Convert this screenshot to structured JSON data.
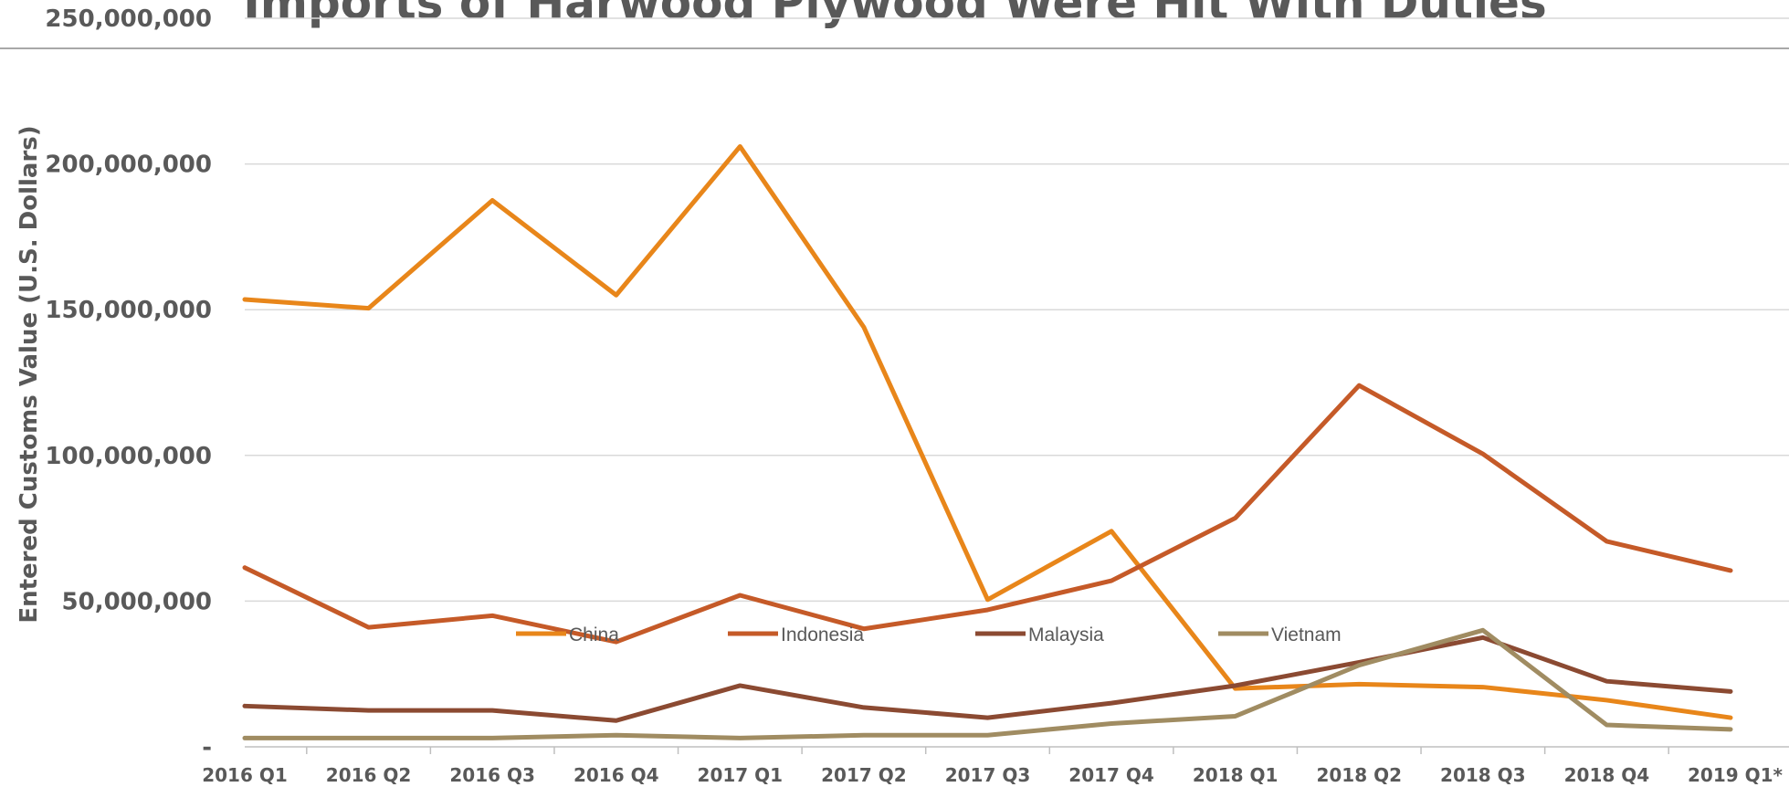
{
  "chart_data": {
    "type": "line",
    "title": "Imports of Harwood Plywood Were Hit With Duties",
    "xlabel": "",
    "ylabel": "Entered Customs Value (U.S. Dollars)",
    "ylim": [
      0,
      250000000
    ],
    "yticks": [
      0,
      50000000,
      100000000,
      150000000,
      200000000,
      250000000
    ],
    "ytick_labels": [
      "-",
      "50,000,000",
      "100,000,000",
      "150,000,000",
      "200,000,000",
      "250,000,000"
    ],
    "categories": [
      "2016 Q1",
      "2016 Q2",
      "2016 Q3",
      "2016 Q4",
      "2017 Q1",
      "2017 Q2",
      "2017 Q3",
      "2017 Q4",
      "2018 Q1",
      "2018 Q2",
      "2018 Q3",
      "2018 Q4",
      "2019 Q1*"
    ],
    "grid": true,
    "legend_position": "inside-bottom-left",
    "series": [
      {
        "name": "China",
        "color": "#E8861A",
        "values": [
          153500000,
          150500000,
          187500000,
          155000000,
          206000000,
          144000000,
          50500000,
          74000000,
          20000000,
          21500000,
          20500000,
          16000000,
          10000000
        ]
      },
      {
        "name": "Indonesia",
        "color": "#C55A28",
        "values": [
          61500000,
          41000000,
          45000000,
          36000000,
          52000000,
          40500000,
          47000000,
          57000000,
          78500000,
          124000000,
          100500000,
          70500000,
          60500000
        ]
      },
      {
        "name": "Malaysia",
        "color": "#8B4A32",
        "values": [
          14000000,
          12500000,
          12500000,
          9000000,
          21000000,
          13500000,
          10000000,
          15000000,
          21000000,
          29000000,
          37500000,
          22500000,
          19000000
        ]
      },
      {
        "name": "Vietnam",
        "color": "#A08C62",
        "values": [
          3000000,
          3000000,
          3000000,
          4000000,
          3000000,
          4000000,
          4000000,
          8000000,
          10500000,
          28000000,
          40000000,
          7500000,
          6000000
        ]
      }
    ]
  }
}
